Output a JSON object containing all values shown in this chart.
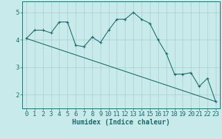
{
  "xlabel": "Humidex (Indice chaleur)",
  "ylabel": "",
  "background_color": "#c8eaea",
  "grid_color": "#a8cccc",
  "line_color": "#1a6b6b",
  "xlim": [
    -0.5,
    23.5
  ],
  "ylim": [
    1.5,
    5.4
  ],
  "yticks": [
    2,
    3,
    4,
    5
  ],
  "xticks": [
    0,
    1,
    2,
    3,
    4,
    5,
    6,
    7,
    8,
    9,
    10,
    11,
    12,
    13,
    14,
    15,
    16,
    17,
    18,
    19,
    20,
    21,
    22,
    23
  ],
  "series1_x": [
    0,
    1,
    2,
    3,
    4,
    5,
    6,
    7,
    8,
    9,
    10,
    11,
    12,
    13,
    14,
    15,
    16,
    17,
    18,
    19,
    20,
    21,
    22,
    23
  ],
  "series1_y": [
    4.05,
    4.35,
    4.35,
    4.25,
    4.65,
    4.65,
    3.8,
    3.75,
    4.1,
    3.9,
    4.35,
    4.75,
    4.75,
    5.0,
    4.75,
    4.6,
    4.0,
    3.5,
    2.75,
    2.75,
    2.8,
    2.3,
    2.6,
    1.75
  ],
  "series2_x": [
    0,
    23
  ],
  "series2_y": [
    4.05,
    1.75
  ],
  "marker_size": 2.5,
  "linewidth": 0.8,
  "font_size": 6.5,
  "xlabel_fontsize": 7
}
